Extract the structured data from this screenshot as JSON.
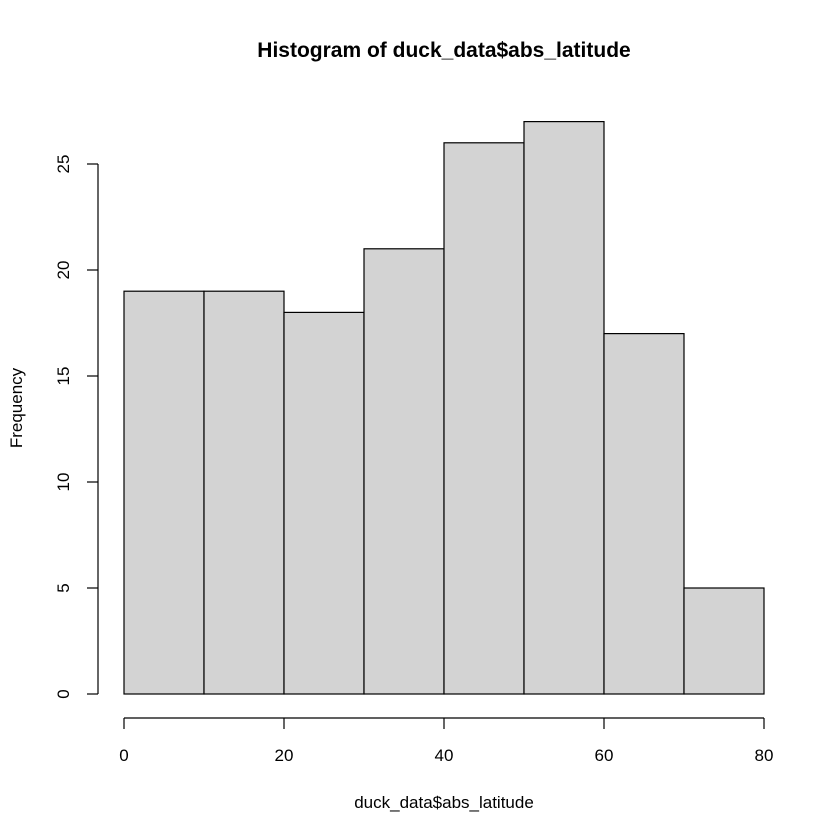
{
  "chart_data": {
    "type": "bar",
    "title": "Histogram of duck_data$abs_latitude",
    "xlabel": "duck_data$abs_latitude",
    "ylabel": "Frequency",
    "bins": [
      {
        "start": 0,
        "end": 10,
        "count": 19
      },
      {
        "start": 10,
        "end": 20,
        "count": 19
      },
      {
        "start": 20,
        "end": 30,
        "count": 18
      },
      {
        "start": 30,
        "end": 40,
        "count": 21
      },
      {
        "start": 40,
        "end": 50,
        "count": 26
      },
      {
        "start": 50,
        "end": 60,
        "count": 27
      },
      {
        "start": 60,
        "end": 70,
        "count": 17
      },
      {
        "start": 70,
        "end": 80,
        "count": 5
      }
    ],
    "xticks": [
      0,
      20,
      40,
      60,
      80
    ],
    "yticks": [
      0,
      5,
      10,
      15,
      20,
      25
    ],
    "xlim": [
      0,
      80
    ],
    "ylim": [
      0,
      27
    ],
    "bar_fill": "#d3d3d3",
    "bar_stroke": "#000000",
    "grid": false
  }
}
